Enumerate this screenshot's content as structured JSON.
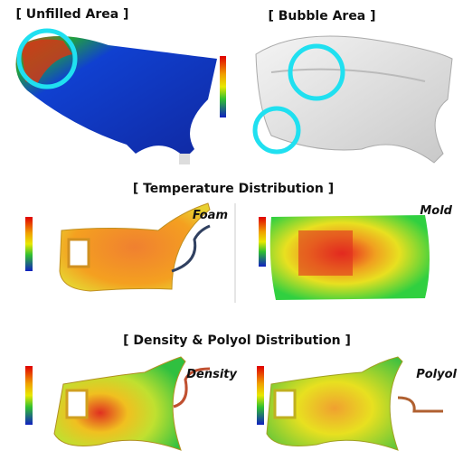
{
  "titles": {
    "unfilled": "[ Unfilled Area ]",
    "bubble": "[ Bubble Area ]",
    "temperature": "[ Temperature Distribution ]",
    "density_polyol": "[ Density & Polyol Distribution ]"
  },
  "labels": {
    "foam": "Foam",
    "mold": "Mold",
    "density": "Density",
    "polyol": "Polyol"
  }
}
